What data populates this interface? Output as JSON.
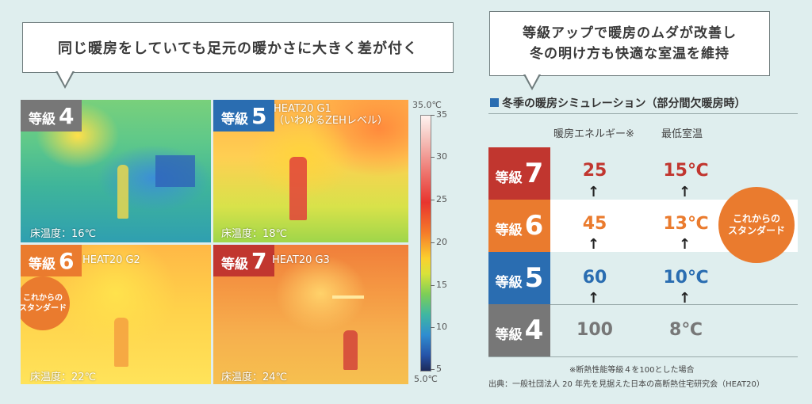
{
  "left_bubble": {
    "text": "同じ暖房をしていても足元の暖かさに大きく差が付く"
  },
  "right_bubble": {
    "line1": "等級アップで暖房のムダが改善し",
    "line2": "冬の明け方も快適な室温を維持"
  },
  "panels": [
    {
      "kanji": "等級",
      "grade": "4",
      "label1": "",
      "label2": "",
      "floor": "床温度：16℃"
    },
    {
      "kanji": "等級",
      "grade": "5",
      "label1": "HEAT20 G1",
      "label2": "（いわゆるZEHレベル）",
      "floor": "床温度：18℃"
    },
    {
      "kanji": "等級",
      "grade": "6",
      "label1": "HEAT20 G2",
      "label2": "",
      "floor": "床温度：22℃"
    },
    {
      "kanji": "等級",
      "grade": "7",
      "label1": "HEAT20 G3",
      "label2": "",
      "floor": "床温度：24℃"
    }
  ],
  "standard_badge": {
    "line1": "これからの",
    "line2": "スタンダード"
  },
  "scale": {
    "max_label": "35.0℃",
    "min_label": "5.0℃",
    "ticks": [
      "35",
      "30",
      "25",
      "20",
      "15",
      "10",
      "5"
    ]
  },
  "simulation": {
    "title": "冬季の暖房シミュレーション（部分間欠暖房時）",
    "col_energy": "暖房エネルギー※",
    "col_temp": "最低室温",
    "rows": [
      {
        "kanji": "等級",
        "grade": "7",
        "energy": "25",
        "temp": "15℃",
        "color": "#c1362f"
      },
      {
        "kanji": "等級",
        "grade": "6",
        "energy": "45",
        "temp": "13℃",
        "color": "#ea7b2e"
      },
      {
        "kanji": "等級",
        "grade": "5",
        "energy": "60",
        "temp": "10℃",
        "color": "#2a6db1"
      },
      {
        "kanji": "等級",
        "grade": "4",
        "energy": "100",
        "temp": "8℃",
        "color": "#777777"
      }
    ],
    "arrow": "↑",
    "note": "※断熱性能等級４を100とした場合",
    "source": "出典：一般社団法人 20 年先を見据えた日本の高断熱住宅研究会（HEAT20）"
  }
}
